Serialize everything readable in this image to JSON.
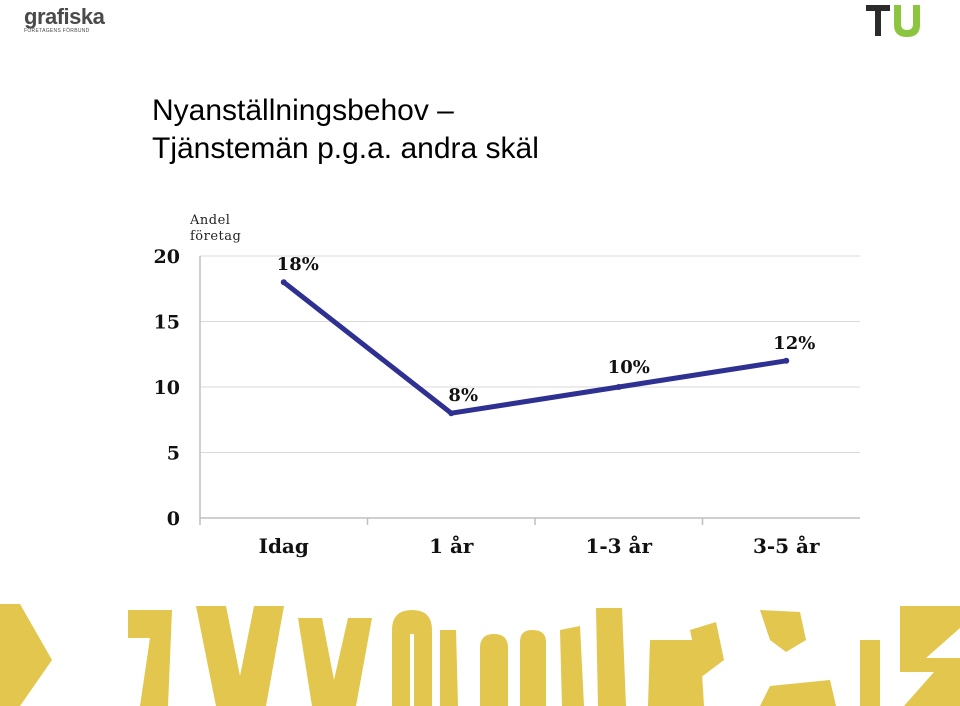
{
  "header": {
    "left_logo": {
      "name": "grafiska",
      "tagline": "FÖRETAGENS FÖRBUND"
    },
    "right_logo": {
      "text": "TU",
      "colors": {
        "t": "#2b2b2b",
        "u": "#8cc63f"
      }
    }
  },
  "slide": {
    "title_line1": "Nyanställningsbehov –",
    "title_line2": "Tjänstemän p.g.a. andra skäl"
  },
  "chart_data": {
    "type": "line",
    "categories": [
      "Idag",
      "1 år",
      "1-3 år",
      "3-5 år"
    ],
    "series": [
      {
        "values": [
          18,
          8,
          10,
          12
        ]
      }
    ],
    "data_labels": [
      "18%",
      "8%",
      "10%",
      "12%"
    ],
    "ylabel": "Andel företag",
    "ylim": [
      0,
      20
    ],
    "yticks": [
      0,
      5,
      10,
      15,
      20
    ],
    "grid": true,
    "legend": "none",
    "colors": {
      "line": "#2e3192",
      "grid": "#d9d9d9",
      "axis": "#bfbfbf"
    }
  },
  "footer": {
    "banner_color": "#e2c64d"
  }
}
